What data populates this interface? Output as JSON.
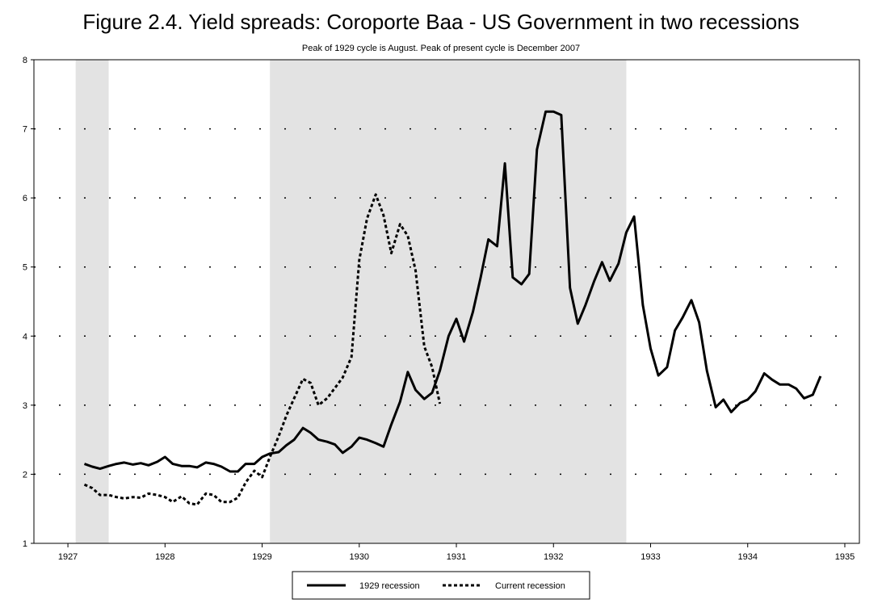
{
  "chart_data": {
    "type": "line",
    "title": "Figure 2.4. Yield spreads: Coroporte Baa - US Government in two recessions",
    "subtitle": "Peak of 1929 cycle is August. Peak of present cycle is December 2007",
    "xlabel": "",
    "ylabel": "",
    "xlim": [
      1926.65,
      1935.15
    ],
    "ylim": [
      1,
      8
    ],
    "x_ticks": [
      "1927",
      "1928",
      "1929",
      "1930",
      "1931",
      "1932",
      "1933",
      "1934",
      "1935"
    ],
    "y_ticks": [
      "1",
      "2",
      "3",
      "4",
      "5",
      "6",
      "7",
      "8"
    ],
    "grid": "horizontal dotted",
    "legend_position": "bottom-center",
    "recession_shading": [
      [
        1927.08,
        1927.42
      ],
      [
        1929.08,
        1932.75
      ]
    ],
    "series": [
      {
        "name": "1929 recession",
        "style": "solid",
        "color": "#000000",
        "x": [
          1927.17,
          1927.25,
          1927.33,
          1927.42,
          1927.5,
          1927.58,
          1927.67,
          1927.75,
          1927.83,
          1927.92,
          1928.0,
          1928.08,
          1928.17,
          1928.25,
          1928.33,
          1928.42,
          1928.5,
          1928.58,
          1928.67,
          1928.75,
          1928.83,
          1928.92,
          1929.0,
          1929.08,
          1929.17,
          1929.25,
          1929.33,
          1929.42,
          1929.5,
          1929.58,
          1929.67,
          1929.75,
          1929.83,
          1929.92,
          1930.0,
          1930.08,
          1930.17,
          1930.25,
          1930.33,
          1930.42,
          1930.5,
          1930.58,
          1930.67,
          1930.75,
          1930.83,
          1930.92,
          1931.0,
          1931.08,
          1931.17,
          1931.25,
          1931.33,
          1931.42,
          1931.5,
          1931.58,
          1931.67,
          1931.75,
          1931.83,
          1931.92,
          1932.0,
          1932.08,
          1932.17,
          1932.25,
          1932.33,
          1932.42,
          1932.5,
          1932.58,
          1932.67,
          1932.75,
          1932.83,
          1932.92,
          1933.0,
          1933.08,
          1933.17,
          1933.25,
          1933.33,
          1933.42,
          1933.5,
          1933.58,
          1933.67,
          1933.75,
          1933.83,
          1933.92,
          1934.0,
          1934.08,
          1934.17,
          1934.25,
          1934.33,
          1934.42,
          1934.5,
          1934.58,
          1934.67,
          1934.75
        ],
        "y": [
          2.15,
          2.11,
          2.08,
          2.12,
          2.15,
          2.17,
          2.14,
          2.16,
          2.13,
          2.18,
          2.25,
          2.15,
          2.12,
          2.12,
          2.1,
          2.17,
          2.15,
          2.11,
          2.04,
          2.04,
          2.15,
          2.15,
          2.25,
          2.3,
          2.32,
          2.42,
          2.5,
          2.67,
          2.6,
          2.5,
          2.47,
          2.43,
          2.31,
          2.4,
          2.53,
          2.5,
          2.45,
          2.4,
          2.72,
          3.05,
          3.48,
          3.22,
          3.09,
          3.18,
          3.5,
          4.0,
          4.25,
          3.92,
          4.35,
          4.85,
          5.4,
          5.3,
          6.5,
          4.85,
          4.75,
          4.9,
          6.7,
          7.25,
          7.25,
          7.2,
          4.7,
          4.18,
          4.45,
          4.8,
          5.07,
          4.8,
          5.05,
          5.5,
          5.73,
          4.45,
          3.82,
          3.43,
          3.55,
          4.08,
          4.27,
          4.52,
          4.2,
          3.5,
          2.97,
          3.08,
          2.9,
          3.03,
          3.08,
          3.2,
          3.46,
          3.37,
          3.3,
          3.3,
          3.24,
          3.1,
          3.15,
          3.42
        ]
      },
      {
        "name": "Current recession",
        "style": "dotted",
        "color": "#000000",
        "x": [
          1927.17,
          1927.25,
          1927.33,
          1927.42,
          1927.5,
          1927.58,
          1927.67,
          1927.75,
          1927.83,
          1927.92,
          1928.0,
          1928.08,
          1928.17,
          1928.25,
          1928.33,
          1928.42,
          1928.5,
          1928.58,
          1928.67,
          1928.75,
          1928.83,
          1928.92,
          1929.0,
          1929.08,
          1929.17,
          1929.25,
          1929.33,
          1929.42,
          1929.5,
          1929.58,
          1929.67,
          1929.75,
          1929.83,
          1929.92,
          1930.0,
          1930.08,
          1930.17,
          1930.25,
          1930.33,
          1930.42,
          1930.5,
          1930.58,
          1930.67,
          1930.75,
          1930.83
        ],
        "y": [
          1.85,
          1.8,
          1.7,
          1.7,
          1.67,
          1.65,
          1.67,
          1.66,
          1.72,
          1.7,
          1.67,
          1.6,
          1.68,
          1.58,
          1.56,
          1.72,
          1.7,
          1.6,
          1.6,
          1.66,
          1.88,
          2.05,
          1.96,
          2.25,
          2.55,
          2.85,
          3.1,
          3.38,
          3.32,
          3.0,
          3.1,
          3.25,
          3.4,
          3.7,
          5.1,
          5.7,
          6.05,
          5.75,
          5.2,
          5.62,
          5.45,
          4.95,
          3.85,
          3.55,
          3.02
        ]
      }
    ]
  }
}
